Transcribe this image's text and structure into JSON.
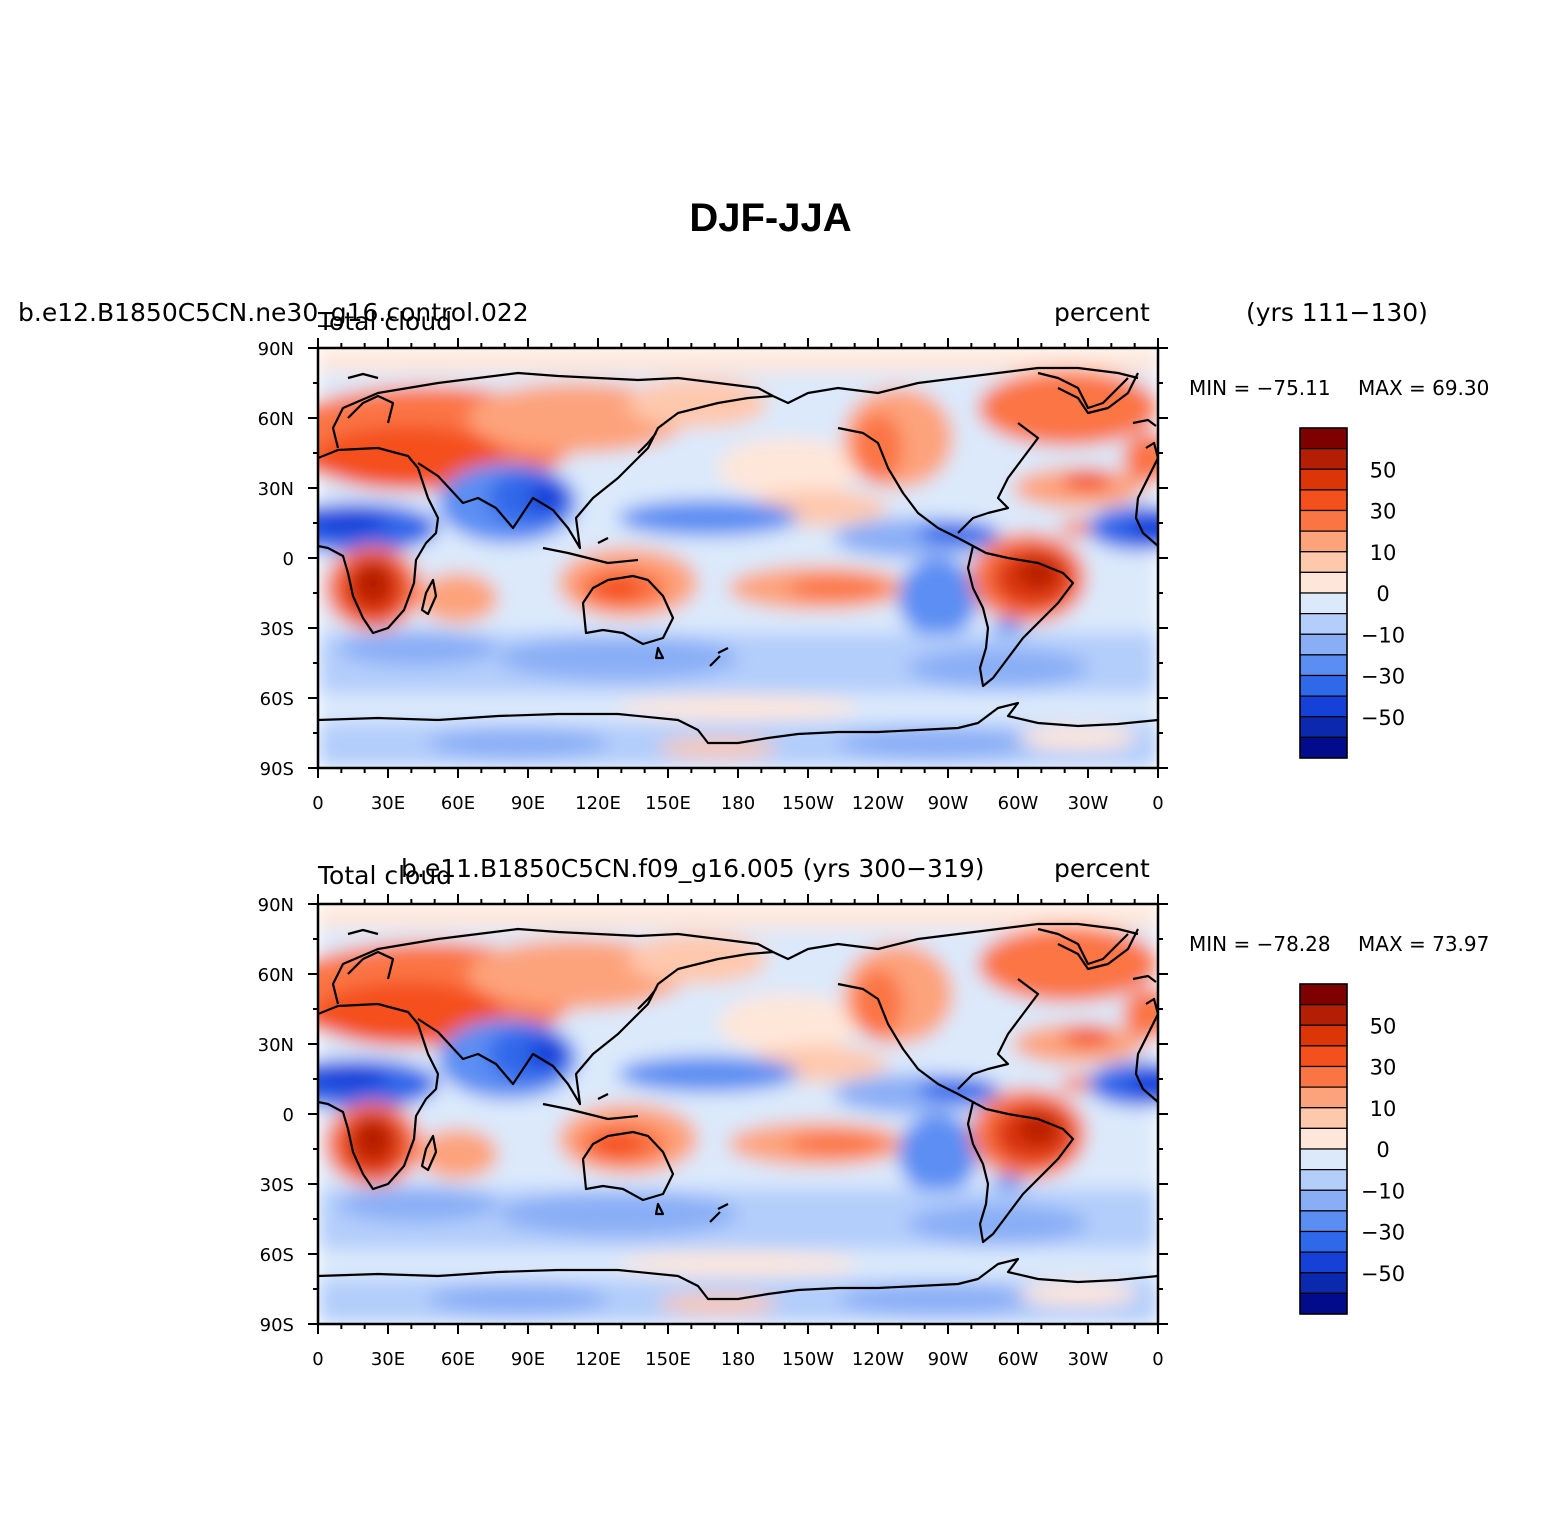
{
  "figure": {
    "title": "DJF-JJA"
  },
  "panels": [
    {
      "case": "b.e12.B1850C5CN.ne30_g16.control.022",
      "years": "(yrs 111−130)",
      "variable": "Total cloud",
      "units": "percent",
      "min_label": "MIN = −75.11",
      "max_label": "MAX =   69.30"
    },
    {
      "case": "b.e11.B1850C5CN.f09_g16.005 (yrs 300−319)",
      "years": "",
      "variable": "Total cloud",
      "units": "percent",
      "min_label": "MIN = −78.28",
      "max_label": "MAX =   73.97"
    }
  ],
  "axes": {
    "lat_labels": [
      "90N",
      "60N",
      "30N",
      "0",
      "30S",
      "60S",
      "90S"
    ],
    "lon_labels": [
      "0",
      "30E",
      "60E",
      "90E",
      "120E",
      "150E",
      "180",
      "150W",
      "120W",
      "90W",
      "60W",
      "30W",
      "0"
    ]
  },
  "colorbar": {
    "colors": [
      "#7f0000",
      "#b31e04",
      "#dc3508",
      "#f4501d",
      "#fb7444",
      "#fda37c",
      "#fec8ad",
      "#fee6d9",
      "#dbe9fb",
      "#b3cefb",
      "#8aaef6",
      "#5b8ef3",
      "#3068ea",
      "#1541d8",
      "#0a29ae",
      "#020b8c"
    ],
    "labels": [
      "50",
      "30",
      "10",
      "0",
      "−10",
      "−30",
      "−50"
    ]
  },
  "chart_data": {
    "type": "heatmap",
    "title": "DJF-JJA",
    "field": "Total cloud (percent), seasonal difference DJF minus JJA",
    "x_range": [
      0,
      360
    ],
    "y_range": [
      -90,
      90
    ],
    "colorbar_levels": [
      -70,
      -60,
      -50,
      -40,
      -30,
      -20,
      -10,
      -5,
      0,
      5,
      10,
      20,
      30,
      40,
      50,
      60,
      70
    ],
    "panels": [
      {
        "case": "b.e12.B1850C5CN.ne30_g16.control.022",
        "min": -75.11,
        "max": 69.3
      },
      {
        "case": "b.e11.B1850C5CN.f09_g16.005",
        "min": -78.28,
        "max": 73.97
      }
    ]
  }
}
